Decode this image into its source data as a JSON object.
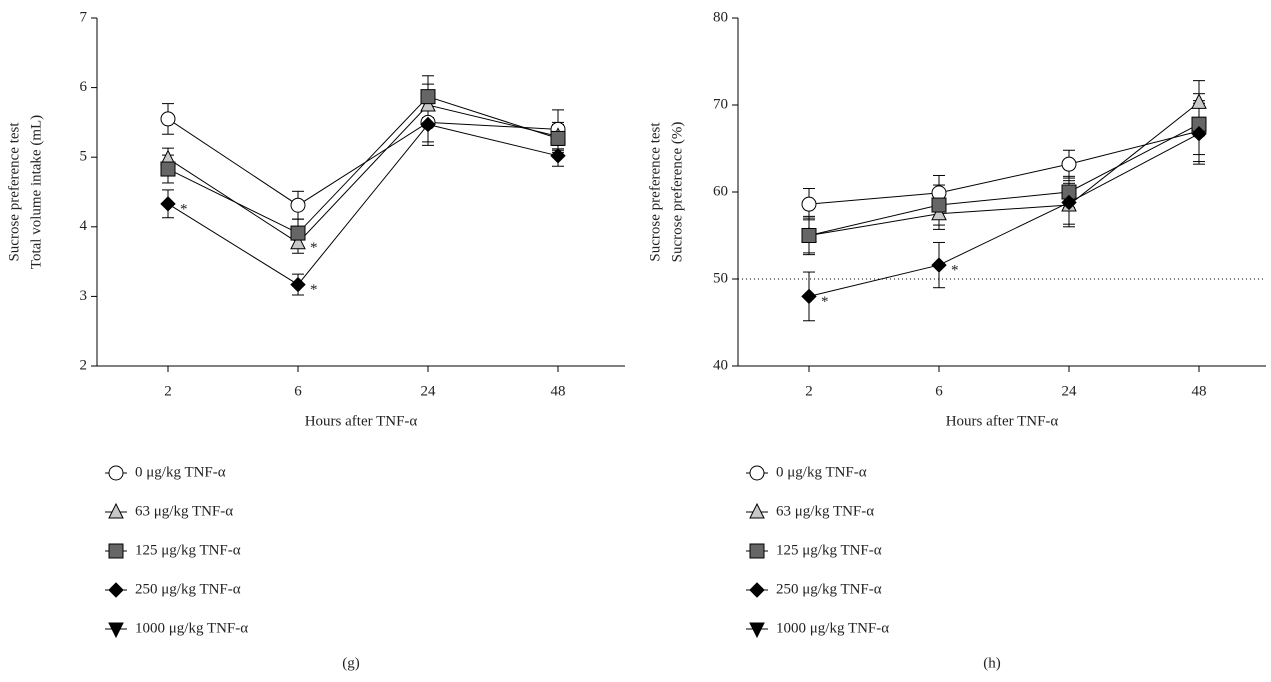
{
  "chart_data": [
    {
      "type": "line",
      "panel_label": "(g)",
      "ylabel": [
        "Sucrose preference test",
        "Total volume intake (mL)"
      ],
      "xlabel": "Hours after TNF-α",
      "categories": [
        "2",
        "6",
        "24",
        "48"
      ],
      "ylim": [
        2,
        7
      ],
      "yticks": [
        2,
        3,
        4,
        5,
        6,
        7
      ],
      "series": [
        {
          "name": "0 μg/kg TNF-α",
          "marker": "circle",
          "color": "#ffffff",
          "values": [
            5.55,
            4.31,
            5.5,
            5.4
          ],
          "errors": [
            0.22,
            0.2,
            0.28,
            0.28
          ],
          "annotations": [
            null,
            null,
            null,
            null
          ]
        },
        {
          "name": "63 μg/kg TNF-α",
          "marker": "triangle",
          "color": "#c8c8c8",
          "values": [
            4.98,
            3.77,
            5.75,
            5.3
          ],
          "errors": [
            0.15,
            0.15,
            0.3,
            0.2
          ],
          "annotations": [
            null,
            "*",
            null,
            null
          ]
        },
        {
          "name": "125 μg/kg TNF-α",
          "marker": "square",
          "color": "#666666",
          "values": [
            4.83,
            3.91,
            5.87,
            5.27
          ],
          "errors": [
            0.2,
            0.2,
            0.3,
            0.2
          ],
          "annotations": [
            null,
            null,
            null,
            null
          ]
        },
        {
          "name": "250 μg/kg TNF-α",
          "marker": "diamond",
          "color": "#000000",
          "values": [
            4.33,
            3.17,
            5.47,
            5.02
          ],
          "errors": [
            0.2,
            0.15,
            0.3,
            0.15
          ],
          "annotations": [
            "*",
            "*",
            null,
            null
          ]
        },
        {
          "name": "1000 μg/kg TNF-α",
          "marker": "triangle-down",
          "color": "#000000",
          "values": [
            null,
            null,
            null,
            null
          ],
          "errors": [
            null,
            null,
            null,
            null
          ],
          "annotations": [
            null,
            null,
            null,
            null
          ]
        }
      ]
    },
    {
      "type": "line",
      "panel_label": "(h)",
      "ylabel": [
        "Sucrose preference test",
        "Sucrose preference (%)"
      ],
      "xlabel": "Hours after TNF-α",
      "categories": [
        "2",
        "6",
        "24",
        "48"
      ],
      "ylim": [
        40,
        80
      ],
      "yticks": [
        40,
        50,
        60,
        70,
        80
      ],
      "hline": 50,
      "series": [
        {
          "name": "0 μg/kg TNF-α",
          "marker": "circle",
          "color": "#ffffff",
          "values": [
            58.6,
            59.9,
            63.2,
            67.0
          ],
          "errors": [
            1.8,
            2.0,
            1.6,
            3.5
          ],
          "annotations": [
            null,
            null,
            null,
            null
          ]
        },
        {
          "name": "63 μg/kg TNF-α",
          "marker": "triangle",
          "color": "#c8c8c8",
          "values": [
            55.0,
            57.5,
            58.5,
            70.3
          ],
          "errors": [
            2.0,
            1.8,
            2.5,
            2.5
          ],
          "annotations": [
            null,
            null,
            null,
            null
          ]
        },
        {
          "name": "125 μg/kg TNF-α",
          "marker": "square",
          "color": "#666666",
          "values": [
            55.0,
            58.5,
            60.0,
            67.8
          ],
          "errors": [
            2.2,
            2.3,
            1.8,
            3.5
          ],
          "annotations": [
            null,
            null,
            null,
            null
          ]
        },
        {
          "name": "250 μg/kg TNF-α",
          "marker": "diamond",
          "color": "#000000",
          "values": [
            48.0,
            51.6,
            58.8,
            66.7
          ],
          "errors": [
            2.8,
            2.6,
            2.5,
            3.5
          ],
          "annotations": [
            "*",
            "*",
            null,
            null
          ]
        },
        {
          "name": "1000 μg/kg TNF-α",
          "marker": "triangle-down",
          "color": "#000000",
          "values": [
            null,
            null,
            null,
            null
          ],
          "errors": [
            null,
            null,
            null,
            null
          ],
          "annotations": [
            null,
            null,
            null,
            null
          ]
        }
      ]
    }
  ]
}
